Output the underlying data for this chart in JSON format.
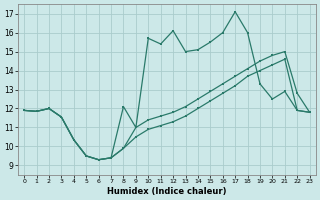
{
  "xlabel": "Humidex (Indice chaleur)",
  "bg_color": "#cce8e8",
  "grid_color": "#aacccc",
  "line_color": "#2a7a6a",
  "xlim": [
    -0.5,
    23.5
  ],
  "ylim": [
    8.5,
    17.5
  ],
  "yticks": [
    9,
    10,
    11,
    12,
    13,
    14,
    15,
    16,
    17
  ],
  "xticks": [
    0,
    1,
    2,
    3,
    4,
    5,
    6,
    7,
    8,
    9,
    10,
    11,
    12,
    13,
    14,
    15,
    16,
    17,
    18,
    19,
    20,
    21,
    22,
    23
  ],
  "line1_x": [
    0,
    1,
    2,
    3,
    4,
    5,
    6,
    7,
    8,
    9,
    10,
    11,
    12,
    13,
    14,
    15,
    16,
    17,
    18,
    19,
    20,
    21,
    22,
    23
  ],
  "line1_y": [
    11.9,
    11.85,
    12.0,
    11.55,
    10.35,
    9.5,
    9.3,
    9.4,
    12.1,
    11.0,
    15.7,
    15.4,
    16.1,
    15.0,
    15.1,
    15.5,
    16.0,
    17.1,
    16.0,
    13.3,
    12.5,
    12.9,
    11.9,
    11.8
  ],
  "line2_x": [
    0,
    1,
    2,
    3,
    4,
    5,
    6,
    7,
    8,
    9,
    10,
    11,
    12,
    13,
    14,
    15,
    16,
    17,
    18,
    19,
    20,
    21,
    22,
    23
  ],
  "line2_y": [
    11.9,
    11.85,
    12.0,
    11.55,
    10.35,
    9.5,
    9.3,
    9.4,
    9.9,
    11.0,
    11.4,
    11.6,
    11.8,
    12.1,
    12.5,
    12.9,
    13.3,
    13.7,
    14.1,
    14.5,
    14.8,
    15.0,
    12.8,
    11.8
  ],
  "line3_x": [
    0,
    1,
    2,
    3,
    4,
    5,
    6,
    7,
    8,
    9,
    10,
    11,
    12,
    13,
    14,
    15,
    16,
    17,
    18,
    19,
    20,
    21,
    22,
    23
  ],
  "line3_y": [
    11.9,
    11.85,
    12.0,
    11.55,
    10.35,
    9.5,
    9.3,
    9.4,
    9.9,
    10.5,
    10.9,
    11.1,
    11.3,
    11.6,
    12.0,
    12.4,
    12.8,
    13.2,
    13.7,
    14.0,
    14.3,
    14.6,
    11.9,
    11.8
  ]
}
